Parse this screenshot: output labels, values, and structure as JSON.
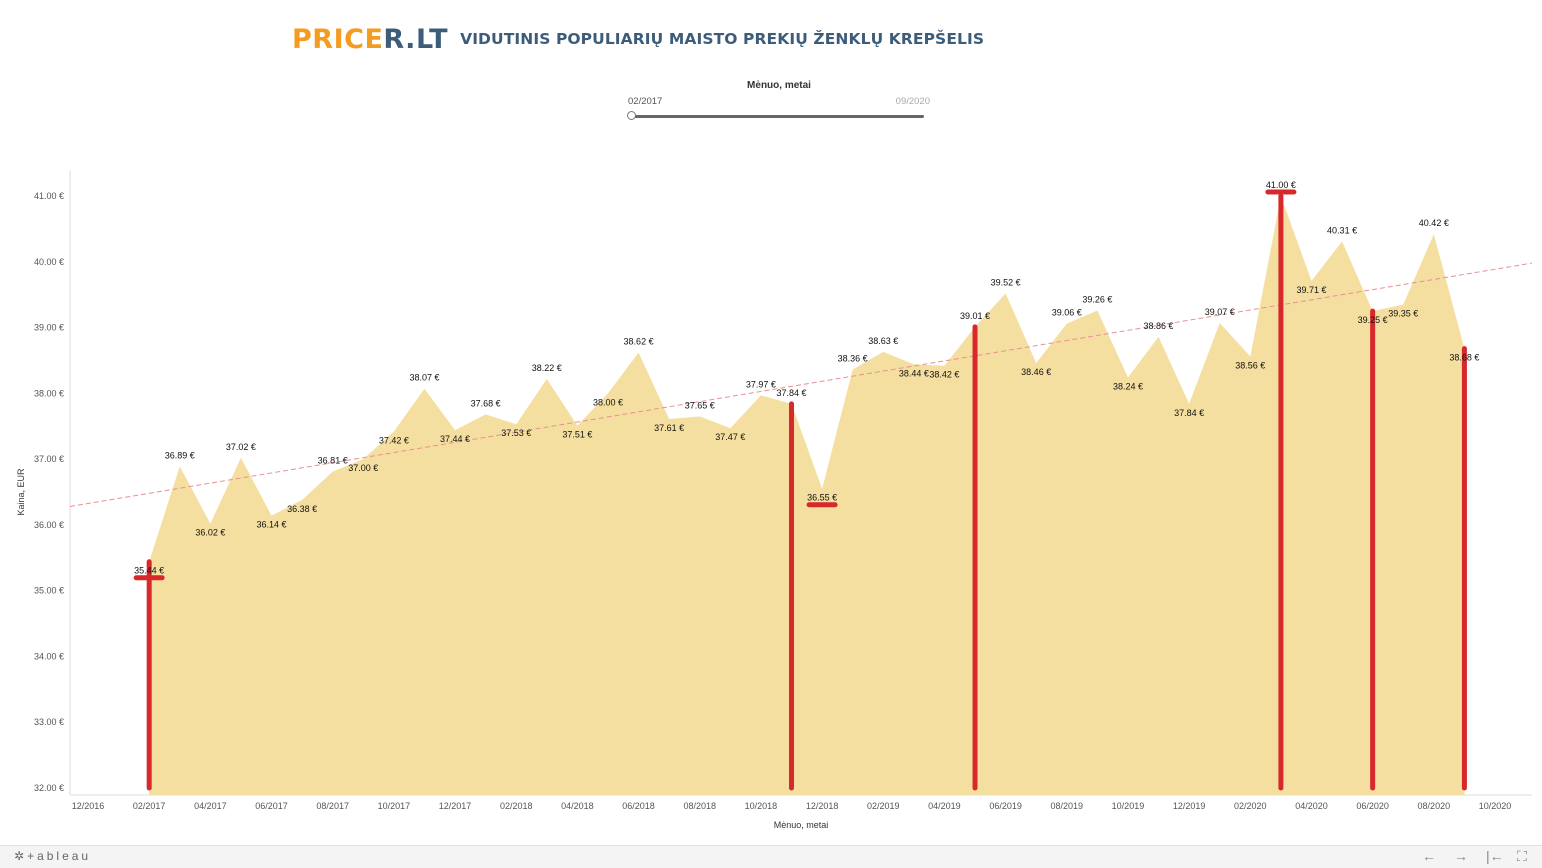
{
  "header": {
    "logo_part1": "PRICE",
    "logo_part2": "R.LT",
    "title": "VIDUTINIS POPULIARIŲ MAISTO PREKIŲ ŽENKLŲ KREPŠELIS"
  },
  "filter": {
    "title": "Mėnuo, metai",
    "min_label": "02/2017",
    "max_label": "09/2020"
  },
  "footer": {
    "brand": "+ableau",
    "nav_back": "←",
    "nav_forward": "→",
    "nav_first": "|←",
    "fullscreen": "⛶"
  },
  "chart_data": {
    "type": "area",
    "xlabel": "Mėnuo, metai",
    "ylabel": "Kaina, EUR",
    "ylim": [
      32,
      41.5
    ],
    "y_ticks": [
      32,
      33,
      34,
      35,
      36,
      37,
      38,
      39,
      40,
      41
    ],
    "y_tick_labels": [
      "32.00 €",
      "33.00 €",
      "34.00 €",
      "35.00 €",
      "36.00 €",
      "37.00 €",
      "38.00 €",
      "39.00 €",
      "40.00 €",
      "41.00 €"
    ],
    "x_tick_labels": [
      "12/2016",
      "02/2017",
      "04/2017",
      "06/2017",
      "08/2017",
      "10/2017",
      "12/2017",
      "02/2018",
      "04/2018",
      "06/2018",
      "08/2018",
      "10/2018",
      "12/2018",
      "02/2019",
      "04/2019",
      "06/2019",
      "08/2019",
      "10/2019",
      "12/2019",
      "02/2020",
      "04/2020",
      "06/2020",
      "08/2020",
      "10/2020"
    ],
    "x": [
      "02/2017",
      "03/2017",
      "04/2017",
      "05/2017",
      "06/2017",
      "07/2017",
      "08/2017",
      "09/2017",
      "10/2017",
      "11/2017",
      "12/2017",
      "01/2018",
      "02/2018",
      "03/2018",
      "04/2018",
      "05/2018",
      "06/2018",
      "07/2018",
      "08/2018",
      "09/2018",
      "10/2018",
      "11/2018",
      "12/2018",
      "01/2019",
      "02/2019",
      "03/2019",
      "04/2019",
      "05/2019",
      "06/2019",
      "07/2019",
      "08/2019",
      "09/2019",
      "10/2019",
      "11/2019",
      "12/2019",
      "01/2020",
      "02/2020",
      "03/2020",
      "04/2020",
      "05/2020",
      "06/2020",
      "07/2020",
      "08/2020",
      "09/2020"
    ],
    "values": [
      35.44,
      36.89,
      36.02,
      37.02,
      36.14,
      36.38,
      36.81,
      37.0,
      37.42,
      38.07,
      37.44,
      37.68,
      37.53,
      38.22,
      37.51,
      38.0,
      38.62,
      37.61,
      37.65,
      37.47,
      37.97,
      37.84,
      36.55,
      38.36,
      38.63,
      38.44,
      38.42,
      39.01,
      39.52,
      38.46,
      39.06,
      39.26,
      38.24,
      38.86,
      37.84,
      39.07,
      38.56,
      41.0,
      39.71,
      40.31,
      39.25,
      39.35,
      40.42,
      38.68
    ],
    "value_labels": [
      "35.44 €",
      "36.89 €",
      "36.02 €",
      "37.02 €",
      "36.14 €",
      "36.38 €",
      "36.81 €",
      "37.00 €",
      "37.42 €",
      "38.07 €",
      "37.44 €",
      "37.68 €",
      "37.53 €",
      "38.22 €",
      "37.51 €",
      "38.00 €",
      "38.62 €",
      "37.61 €",
      "37.65 €",
      "37.47 €",
      "37.97 €",
      "37.84 €",
      "36.55 €",
      "38.36 €",
      "38.63 €",
      "38.44 €",
      "38.42 €",
      "39.01 €",
      "39.52 €",
      "38.46 €",
      "39.06 €",
      "39.26 €",
      "38.24 €",
      "38.86 €",
      "37.84 €",
      "39.07 €",
      "38.56 €",
      "41.00 €",
      "39.71 €",
      "40.31 €",
      "39.25 €",
      "39.35 €",
      "40.42 €",
      "38.68 €"
    ],
    "label_positions": [
      "below",
      "above",
      "below",
      "above",
      "below",
      "below",
      "above",
      "below",
      "below",
      "above",
      "below",
      "above",
      "below",
      "above",
      "below",
      "below",
      "above",
      "below",
      "above",
      "below",
      "above",
      "above",
      "below",
      "above",
      "above",
      "below",
      "below",
      "above",
      "above",
      "below",
      "above",
      "above",
      "below",
      "above",
      "below",
      "above",
      "below",
      "above",
      "below",
      "above",
      "below",
      "below",
      "above",
      "below"
    ],
    "trendline": {
      "start": 36.28,
      "end": 39.98
    },
    "highlight_months": [
      "02/2017",
      "11/2018",
      "05/2019",
      "03/2020",
      "06/2020",
      "09/2020"
    ],
    "highlight_bar_from": 32,
    "highlight_bar_to": [
      35.44,
      37.84,
      39.01,
      41.0,
      39.25,
      38.68
    ],
    "marked_labels": [
      "02/2017",
      "12/2018",
      "03/2020"
    ],
    "colors": {
      "area": "#f5dfa0",
      "highlight": "#d7282b",
      "trend": "#e89090",
      "axis": "#dddddd"
    },
    "grid": false
  }
}
